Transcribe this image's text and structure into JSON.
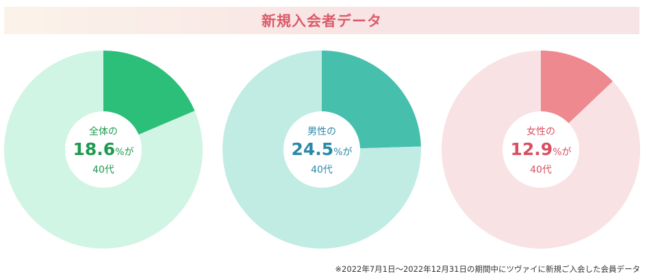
{
  "banner": {
    "title": "新規入会者データ"
  },
  "chart_data": [
    {
      "type": "pie",
      "center_label": "全体の",
      "value_text": "18.6",
      "suffix": "%が",
      "age_label": "40代",
      "slices": [
        {
          "label": "40代",
          "value": 18.6,
          "color": "#2bbf79"
        },
        {
          "label": "",
          "value": 81.4,
          "color": "#d1f5e4"
        }
      ],
      "text_color": "#1c9a4e"
    },
    {
      "type": "pie",
      "center_label": "男性の",
      "value_text": "24.5",
      "suffix": "%が",
      "age_label": "40代",
      "slices": [
        {
          "label": "40代",
          "value": 24.5,
          "color": "#47bfad"
        },
        {
          "label": "",
          "value": 75.5,
          "color": "#c0ece4"
        }
      ],
      "text_color": "#2a88a8"
    },
    {
      "type": "pie",
      "center_label": "女性の",
      "value_text": "12.9",
      "suffix": "%が",
      "age_label": "40代",
      "slices": [
        {
          "label": "40代",
          "value": 12.9,
          "color": "#ee8990"
        },
        {
          "label": "",
          "value": 87.1,
          "color": "#f8e2e4"
        }
      ],
      "text_color": "#d94f5f"
    }
  ],
  "footnote": "※2022年7月1日～2022年12月31日の期間中にツヴァイに新規ご入会した会員データ"
}
